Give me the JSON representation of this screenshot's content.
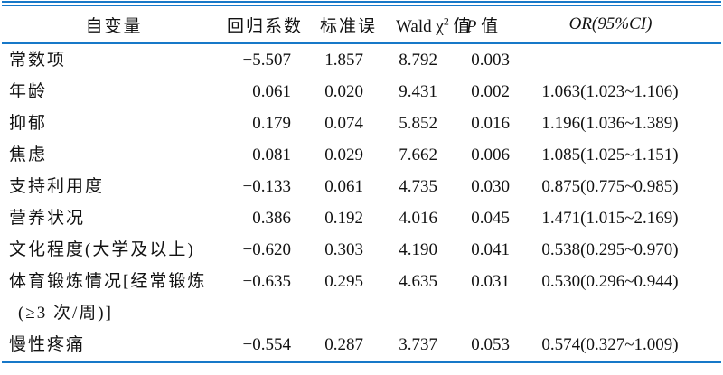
{
  "colors": {
    "rule_blue": "#1778c8",
    "text": "#121212",
    "background": "#ffffff"
  },
  "table": {
    "header": {
      "variable": "自变量",
      "coef": "回归系数",
      "se": "标准误",
      "wald_prefix": "Wald χ",
      "wald_sup": "2",
      "wald_suffix": " 值",
      "p_italic": "P",
      "p_suffix": " 值",
      "or": "OR(95%CI)"
    },
    "rows": [
      {
        "variable": "常数项",
        "coef": "−5.507",
        "se": "1.857",
        "wald": "8.792",
        "p": "0.003",
        "or": "—"
      },
      {
        "variable": "年龄",
        "coef": "0.061",
        "se": "0.020",
        "wald": "9.431",
        "p": "0.002",
        "or": "1.063(1.023~1.106)"
      },
      {
        "variable": "抑郁",
        "coef": "0.179",
        "se": "0.074",
        "wald": "5.852",
        "p": "0.016",
        "or": "1.196(1.036~1.389)"
      },
      {
        "variable": "焦虑",
        "coef": "0.081",
        "se": "0.029",
        "wald": "7.662",
        "p": "0.006",
        "or": "1.085(1.025~1.151)"
      },
      {
        "variable": "支持利用度",
        "coef": "−0.133",
        "se": "0.061",
        "wald": "4.735",
        "p": "0.030",
        "or": "0.875(0.775~0.985)"
      },
      {
        "variable": "营养状况",
        "coef": "0.386",
        "se": "0.192",
        "wald": "4.016",
        "p": "0.045",
        "or": "1.471(1.015~2.169)"
      },
      {
        "variable": "文化程度(大学及以上)",
        "coef": "−0.620",
        "se": "0.303",
        "wald": "4.190",
        "p": "0.041",
        "or": "0.538(0.295~0.970)"
      },
      {
        "variable_line1": "体育锻炼情况[经常锻炼",
        "variable_line2": "(≥3 次/周)]",
        "coef": "−0.635",
        "se": "0.295",
        "wald": "4.635",
        "p": "0.031",
        "or": "0.530(0.296~0.944)"
      },
      {
        "variable": "慢性疼痛",
        "coef": "−0.554",
        "se": "0.287",
        "wald": "3.737",
        "p": "0.053",
        "or": "0.574(0.327~1.009)"
      }
    ]
  }
}
